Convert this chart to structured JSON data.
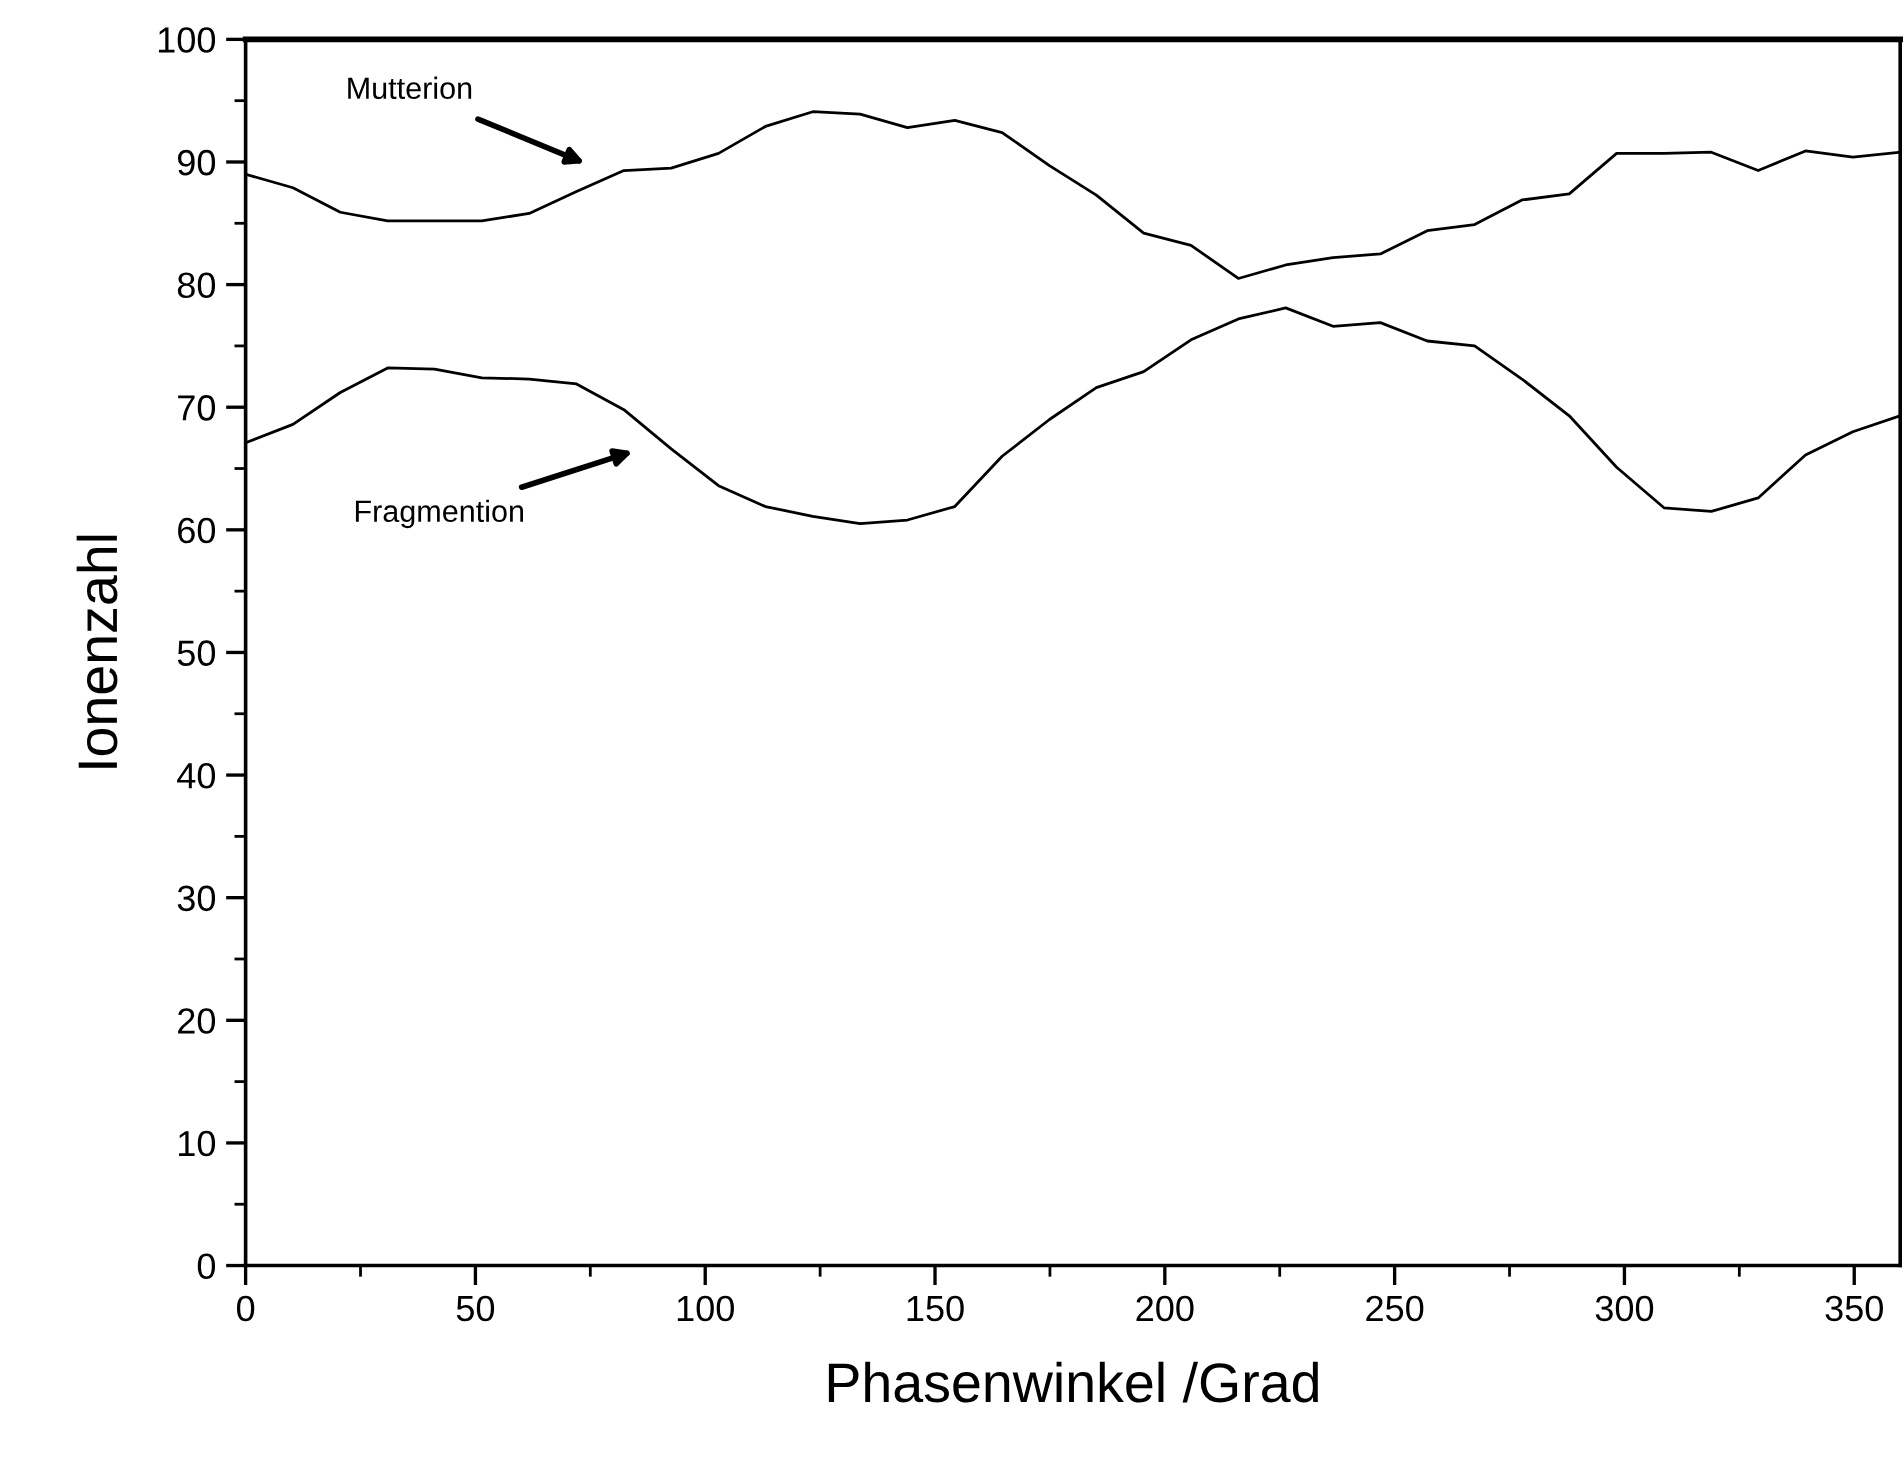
{
  "chart_data": {
    "type": "line",
    "xlabel": "Phasenwinkel /Grad",
    "ylabel": "Ionenzahl",
    "x": [
      0,
      10.3,
      20.6,
      30.9,
      41.1,
      51.4,
      61.7,
      72.0,
      82.3,
      92.6,
      102.9,
      113.1,
      123.4,
      133.7,
      144.0,
      154.3,
      164.6,
      174.9,
      185.1,
      195.4,
      205.7,
      216.0,
      226.3,
      236.6,
      246.9,
      257.1,
      267.4,
      277.7,
      288.0,
      298.3,
      308.6,
      318.9,
      329.1,
      339.4,
      349.7,
      360
    ],
    "series": [
      {
        "color": "#000000",
        "values": [
          89.0,
          87.9,
          85.9,
          85.2,
          85.2,
          85.2,
          85.8,
          87.6,
          89.3,
          89.5,
          90.7,
          92.9,
          94.1,
          93.9,
          92.8,
          93.4,
          92.4,
          89.7,
          87.3,
          84.2,
          83.2,
          80.5,
          81.6,
          82.2,
          82.5,
          84.4,
          84.9,
          86.9,
          87.4,
          90.7,
          90.7,
          90.8,
          89.3,
          90.9,
          90.4,
          90.8
        ]
      },
      {
        "color": "#000000",
        "values": [
          67.1,
          68.6,
          71.2,
          73.2,
          73.1,
          72.4,
          72.3,
          71.9,
          69.8,
          66.6,
          63.6,
          61.9,
          61.1,
          60.5,
          60.8,
          61.9,
          66.0,
          69.0,
          71.6,
          72.9,
          75.5,
          77.2,
          78.1,
          76.6,
          76.9,
          75.4,
          75.0,
          72.3,
          69.3,
          65.1,
          61.8,
          61.5,
          62.6,
          66.1,
          68.0,
          69.3
        ]
      }
    ],
    "annotations": [
      "Mutterion",
      "Fragmention"
    ],
    "xlim": [
      0,
      360
    ],
    "ylim": [
      0,
      100
    ],
    "xticks": [
      0,
      50,
      100,
      150,
      200,
      250,
      300,
      350
    ],
    "yticks": [
      0,
      10,
      20,
      30,
      40,
      50,
      60,
      70,
      80,
      90,
      100
    ],
    "grid": false,
    "legend": false,
    "marker": "none",
    "line_style": "solid"
  }
}
